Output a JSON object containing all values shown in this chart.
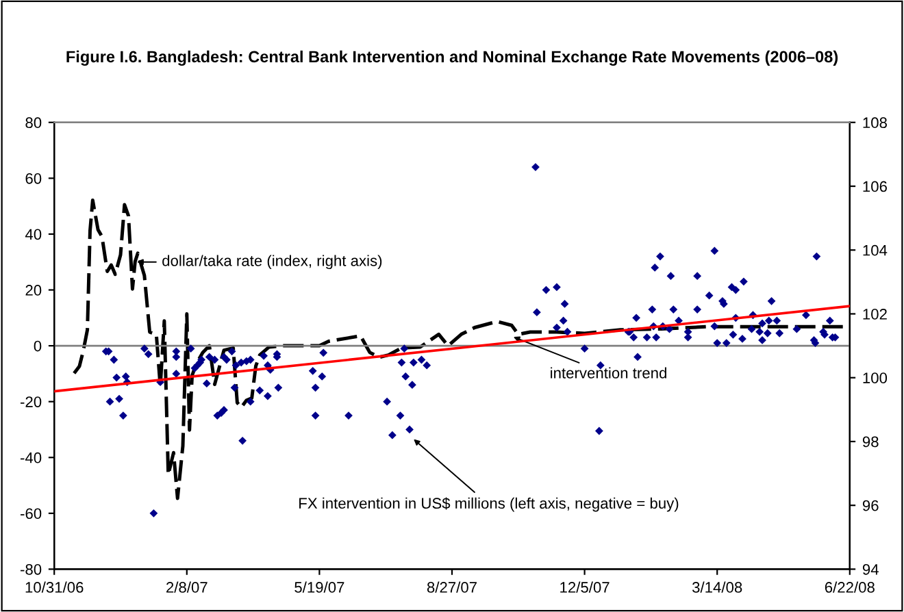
{
  "chart_data": {
    "type": "scatter",
    "title": "Figure I.6. Bangladesh: Central Bank Intervention and Nominal Exchange Rate Movements (2006–08)",
    "xlim": [
      "2006-10-31",
      "2008-06-22"
    ],
    "xticks": [
      {
        "value": "2006-10-31",
        "label": "10/31/06"
      },
      {
        "value": "2007-02-08",
        "label": "2/8/07"
      },
      {
        "value": "2007-05-19",
        "label": "5/19/07"
      },
      {
        "value": "2007-08-27",
        "label": "8/27/07"
      },
      {
        "value": "2007-12-05",
        "label": "12/5/07"
      },
      {
        "value": "2008-03-14",
        "label": "3/14/08"
      },
      {
        "value": "2008-06-22",
        "label": "6/22/08"
      }
    ],
    "ylim": [
      -80,
      80
    ],
    "yticks": [
      -80,
      -60,
      -40,
      -20,
      0,
      20,
      40,
      60,
      80
    ],
    "y2lim": [
      94,
      108
    ],
    "y2ticks": [
      94,
      96,
      98,
      100,
      102,
      104,
      106,
      108
    ],
    "grid": false,
    "legend": false,
    "ref_lines": [
      {
        "axis": "y",
        "value": 0,
        "color": "#808080"
      }
    ],
    "annotations": [
      {
        "text": "dollar/taka rate (index, right axis)",
        "x": "2006-12-31",
        "y": 30
      },
      {
        "text": "intervention trend",
        "x": "2007-10-11",
        "y": 3.4
      },
      {
        "text": "FX intervention in US$ millions (left axis, negative = buy)",
        "x": "2007-07-28",
        "y": -33
      }
    ],
    "series": [
      {
        "color": "#00008b",
        "marker": "diamond",
        "x": [
          "2006-12-09",
          "2006-12-11",
          "2006-12-15",
          "2006-12-17",
          "2006-12-12",
          "2006-12-19",
          "2006-12-22",
          "2006-12-24",
          "2006-12-25",
          "2007-01-07",
          "2007-01-10",
          "2007-01-14",
          "2007-01-19",
          "2007-01-31",
          "2007-01-31",
          "2007-01-31",
          "2007-02-11",
          "2007-02-14",
          "2007-02-16",
          "2007-02-18",
          "2007-02-19",
          "2007-02-23",
          "2007-02-25",
          "2007-03-01",
          "2007-03-03",
          "2007-03-06",
          "2007-03-08",
          "2007-03-08",
          "2007-03-10",
          "2007-03-14",
          "2007-03-16",
          "2007-03-17",
          "2007-03-22",
          "2007-03-21",
          "2007-03-25",
          "2007-03-28",
          "2007-03-28",
          "2007-04-04",
          "2007-04-07",
          "2007-04-10",
          "2007-04-10",
          "2007-04-12",
          "2007-04-17",
          "2007-04-18",
          "2007-04-17",
          "2007-05-14",
          "2007-05-16",
          "2007-05-16",
          "2007-05-21",
          "2007-05-22",
          "2007-06-10",
          "2007-07-09",
          "2007-07-13",
          "2007-07-19",
          "2007-07-20",
          "2007-07-22",
          "2007-07-23",
          "2007-07-26",
          "2007-07-28",
          "2007-07-29",
          "2007-08-04",
          "2007-08-08",
          "2007-10-29",
          "2007-10-30",
          "2007-11-06",
          "2007-11-14",
          "2007-11-20",
          "2007-11-19",
          "2007-11-14",
          "2007-11-22",
          "2007-12-05",
          "2007-12-17",
          "2007-12-16",
          "2008-01-07",
          "2008-01-08",
          "2008-01-11",
          "2008-01-13",
          "2008-01-14",
          "2008-01-21",
          "2008-01-25",
          "2008-01-26",
          "2008-01-27",
          "2008-01-28",
          "2008-01-31",
          "2008-02-02",
          "2008-02-07",
          "2008-02-08",
          "2008-02-10",
          "2008-02-14",
          "2008-02-21",
          "2008-02-21",
          "2008-02-28",
          "2008-02-28",
          "2008-03-08",
          "2008-03-12",
          "2008-03-12",
          "2008-03-14",
          "2008-03-18",
          "2008-03-19",
          "2008-03-21",
          "2008-03-25",
          "2008-03-26",
          "2008-03-28",
          "2008-03-28",
          "2008-04-02",
          "2008-04-03",
          "2008-04-10",
          "2008-04-09",
          "2008-04-15",
          "2008-04-17",
          "2008-04-17",
          "2008-04-21",
          "2008-04-22",
          "2008-04-24",
          "2008-04-28",
          "2008-04-30",
          "2008-05-13",
          "2008-05-20",
          "2008-05-26",
          "2008-05-27",
          "2008-05-28",
          "2008-06-02",
          "2008-06-03",
          "2008-06-07",
          "2008-06-09",
          "2008-06-11"
        ],
        "values": [
          -2,
          -2,
          -5,
          -11.4,
          -20,
          -19,
          -25,
          -11,
          -13,
          -1,
          -3,
          -60,
          -13,
          -2,
          -4,
          -10,
          -1,
          -8,
          -7,
          -6,
          -5,
          -13.5,
          -4,
          -5,
          -25,
          -24,
          -23,
          -4,
          -5,
          -2,
          -15,
          -7,
          -34,
          -6,
          -5.5,
          -5,
          -20,
          -16,
          -3.6,
          -7,
          -18,
          -8.6,
          -3,
          -15,
          -4,
          -9,
          -25,
          -15,
          -11,
          -2.5,
          -25,
          -20,
          -32,
          -25,
          -6,
          -1,
          -11,
          -30,
          -14,
          -6,
          -5,
          -7,
          64,
          12,
          20,
          21,
          15,
          9,
          6.5,
          5,
          -1,
          -7,
          -30.5,
          5,
          5,
          3,
          10,
          -4,
          3,
          13,
          7,
          28,
          3,
          32,
          7,
          6,
          25,
          13,
          9,
          5,
          3,
          13,
          25,
          18,
          34,
          7,
          1,
          16,
          15,
          1,
          21,
          4,
          10,
          20,
          2.5,
          23,
          11,
          6,
          5,
          2,
          8,
          4.5,
          9,
          16,
          9,
          4.5,
          6,
          11,
          2,
          1,
          32,
          5,
          4,
          9,
          3,
          3
        ]
      },
      {
        "type": "line",
        "axis": "y2",
        "color": "#000000",
        "line_style": "dashed",
        "marker": "none",
        "x": [
          "2006-11-15",
          "2006-11-19",
          "2006-11-22",
          "2006-11-25",
          "2006-11-27",
          "2006-11-29",
          "2006-12-03",
          "2006-12-06",
          "2006-12-10",
          "2006-12-13",
          "2006-12-16",
          "2006-12-20",
          "2006-12-23",
          "2006-12-26",
          "2006-12-29",
          "2006-12-31",
          "2007-01-02",
          "2007-01-07",
          "2007-01-11",
          "2007-01-16",
          "2007-01-19",
          "2007-01-22",
          "2007-01-25",
          "2007-01-29",
          "2007-02-01",
          "2007-02-05",
          "2007-02-08",
          "2007-02-10",
          "2007-02-12",
          "2007-02-15",
          "2007-02-20",
          "2007-02-25",
          "2007-03-01",
          "2007-03-08",
          "2007-03-15",
          "2007-03-18",
          "2007-03-21",
          "2007-03-25",
          "2007-03-29",
          "2007-04-01",
          "2007-04-04",
          "2007-04-11",
          "2007-04-21",
          "2007-05-19",
          "2007-05-26",
          "2007-06-19",
          "2007-06-26",
          "2007-07-03",
          "2007-07-10",
          "2007-07-20",
          "2007-08-03",
          "2007-08-17",
          "2007-08-24",
          "2007-09-03",
          "2007-09-13",
          "2007-09-30",
          "2007-10-11",
          "2007-10-16",
          "2007-10-25",
          "2007-11-14",
          "2007-12-05",
          "2008-01-01",
          "2008-02-01",
          "2008-03-07",
          "2008-06-22"
        ],
        "values": [
          100.14,
          100.36,
          100.86,
          101.5,
          104.6,
          105.56,
          104.64,
          104.42,
          103.33,
          103.53,
          103.24,
          103.85,
          105.42,
          105.07,
          102.78,
          103.64,
          103.9,
          103.2,
          101.43,
          101.36,
          99.72,
          101.78,
          96.96,
          97.65,
          96.22,
          97.86,
          102,
          98.36,
          100.07,
          100.43,
          100.79,
          101,
          99.79,
          100.86,
          100.93,
          99.22,
          99.07,
          99.29,
          99.36,
          100.36,
          100.71,
          100.96,
          101,
          101,
          101.14,
          101.31,
          100.79,
          100.64,
          100.71,
          100.93,
          100.96,
          101.36,
          101,
          101.36,
          101.57,
          101.76,
          101.64,
          101.36,
          101.43,
          101.43,
          101.39,
          101.5,
          101.53,
          101.6,
          101.6
        ]
      },
      {
        "type": "line",
        "color": "#ff0000",
        "line_style": "solid",
        "marker": "none",
        "x": [
          "2006-10-31",
          "2008-06-22"
        ],
        "values": [
          -16.3,
          14.2
        ]
      }
    ]
  }
}
